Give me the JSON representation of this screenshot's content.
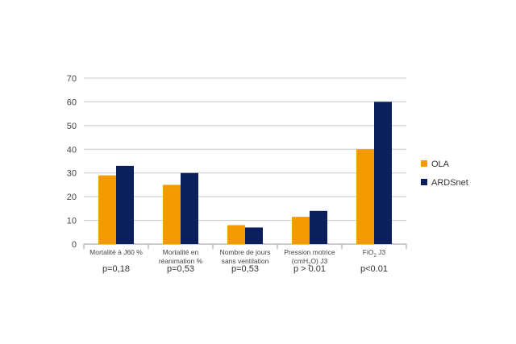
{
  "chart_data": {
    "type": "bar",
    "title": "",
    "xlabel": "",
    "ylabel": "",
    "ylim": [
      0,
      70
    ],
    "yticks": [
      0,
      10,
      20,
      30,
      40,
      50,
      60,
      70
    ],
    "grid": true,
    "legend_position": "right",
    "categories": [
      {
        "lines": [
          "Mortalité à J60 %"
        ],
        "sub": "",
        "pvalue": "p=0,18"
      },
      {
        "lines": [
          "Mortalité en",
          "réanimation %"
        ],
        "sub": "",
        "pvalue": "p=0,53"
      },
      {
        "lines": [
          "Nombre de jours",
          "sans ventilation"
        ],
        "sub": "",
        "pvalue": "p=0,53"
      },
      {
        "lines": [
          "Pression motrice",
          "(cmH",
          "O) J3"
        ],
        "sub": "2",
        "pvalue": "p > 0.01"
      },
      {
        "lines": [
          "FiO",
          " J3"
        ],
        "sub": "2",
        "pvalue": "p<0.01"
      }
    ],
    "series": [
      {
        "name": "OLA",
        "color": "#F39A00",
        "values": [
          29,
          25,
          8,
          11.5,
          40
        ]
      },
      {
        "name": "ARDSnet",
        "color": "#0A1F5C",
        "values": [
          33,
          30,
          7,
          14,
          60
        ]
      }
    ],
    "gridline_color": "#c8c8c8",
    "axis_color": "#9a9a9a"
  }
}
